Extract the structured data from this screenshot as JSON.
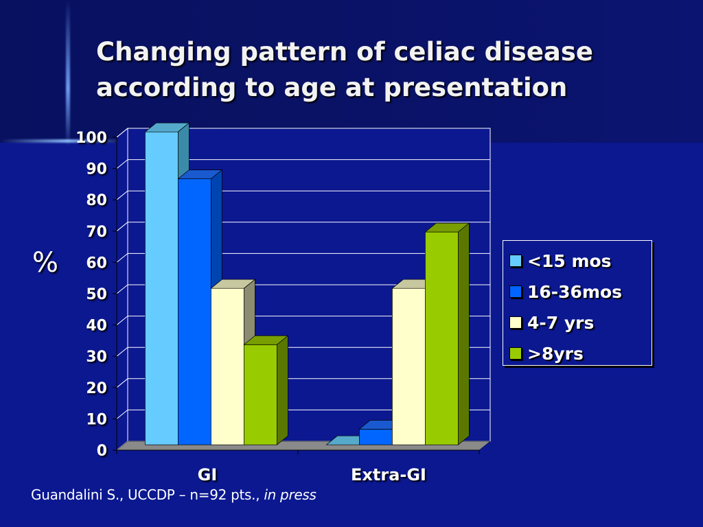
{
  "title_line1": "Changing pattern of celiac disease",
  "title_line2": "according to age at presentation",
  "citation": {
    "text": "Guandalini S., UCCDP – n=92 pts.,",
    "italic": "in press"
  },
  "colors": {
    "background": "#0b1890",
    "text": "#ffffff"
  },
  "chart_data": {
    "type": "bar",
    "style": "3d-clustered-column",
    "categories": [
      "GI",
      "Extra-GI"
    ],
    "ylabel": "%",
    "ylim": [
      0,
      100
    ],
    "yticks": [
      0,
      10,
      20,
      30,
      40,
      50,
      60,
      70,
      80,
      90,
      100
    ],
    "grid": true,
    "legend_position": "right",
    "series": [
      {
        "name": "<15 mos",
        "values": [
          100,
          0
        ],
        "color": "#66ccff",
        "side": "#3a8aaa",
        "top": "#55aacc"
      },
      {
        "name": "16-36mos",
        "values": [
          85,
          5
        ],
        "color": "#0066ff",
        "side": "#0044b0",
        "top": "#1a5ad0"
      },
      {
        "name": "4-7 yrs",
        "values": [
          50,
          50
        ],
        "color": "#ffffcc",
        "side": "#8c8c70",
        "top": "#c8c8a0"
      },
      {
        "name": ">8yrs",
        "values": [
          32,
          68
        ],
        "color": "#99cc00",
        "side": "#5a7800",
        "top": "#789e00"
      }
    ]
  }
}
